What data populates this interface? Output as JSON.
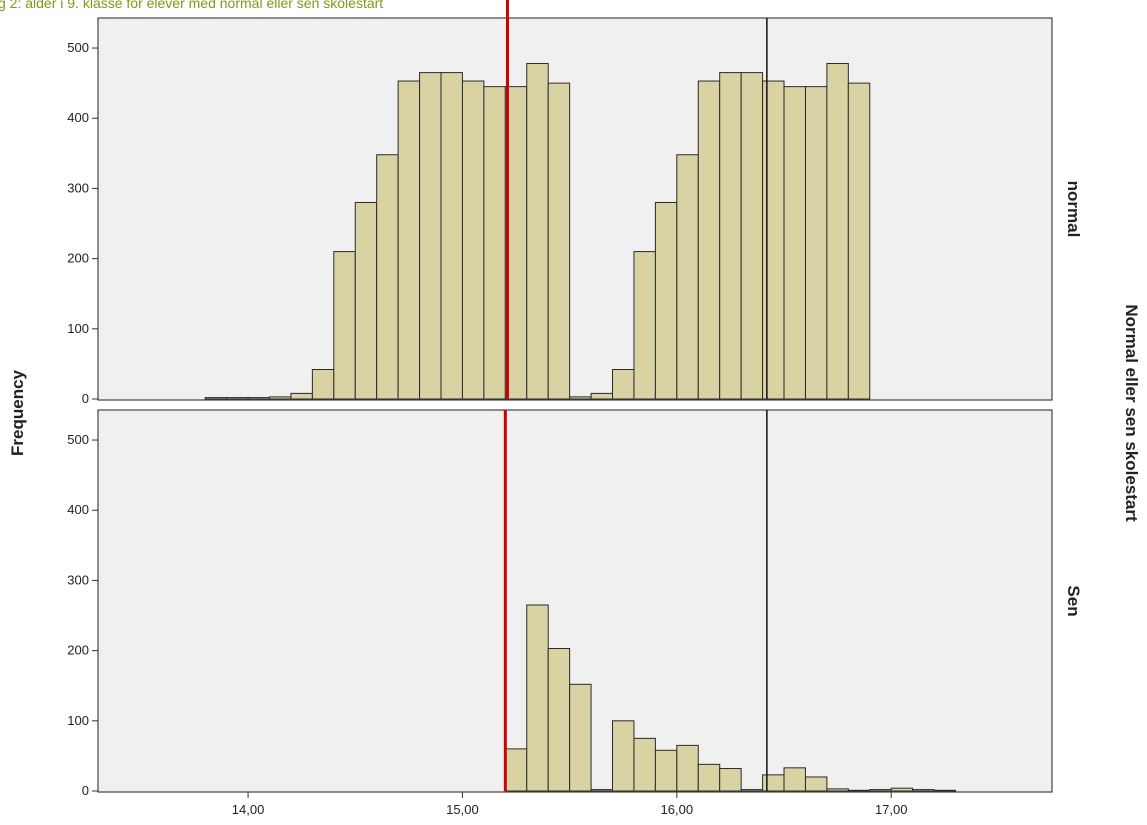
{
  "caption": "g 2: alder i 9. klasse for elever med normal eller sen skolestart",
  "colors": {
    "bar_fill": "#d9d3a4",
    "bar_stroke": "#2a2a2a",
    "panel_bg": "#f0f0f0",
    "panel_stroke": "#444444",
    "red_line": "#cc0000",
    "black_line": "#111111"
  },
  "chart_data": {
    "type": "bar",
    "xlim": [
      13.3,
      17.75
    ],
    "ylim": [
      0,
      520
    ],
    "bin_width": 0.1,
    "ylabel": "Frequency",
    "group_label": "Normal eller sen skolestart",
    "x_ticks": [
      {
        "value": 14.0,
        "label": "14,00"
      },
      {
        "value": 15.0,
        "label": "15,00"
      },
      {
        "value": 16.0,
        "label": "16,00"
      },
      {
        "value": 17.0,
        "label": "17,00"
      }
    ],
    "y_ticks": [
      0,
      100,
      200,
      300,
      400,
      500
    ],
    "panels": [
      {
        "label": "normal",
        "bins": [
          [
            13.85,
            2
          ],
          [
            13.95,
            2
          ],
          [
            14.05,
            2
          ],
          [
            14.15,
            3
          ],
          [
            14.25,
            8
          ],
          [
            14.35,
            42
          ],
          [
            14.45,
            210
          ],
          [
            14.55,
            280
          ],
          [
            14.65,
            348
          ],
          [
            14.75,
            453
          ],
          [
            14.85,
            465
          ],
          [
            14.95,
            465
          ],
          [
            15.05,
            453
          ],
          [
            15.15,
            445
          ],
          [
            15.25,
            445
          ],
          [
            15.35,
            478
          ],
          [
            15.45,
            450
          ],
          [
            15.55,
            3
          ],
          [
            15.65,
            8
          ],
          [
            15.75,
            42
          ],
          [
            15.85,
            210
          ],
          [
            15.95,
            280
          ],
          [
            16.05,
            348
          ],
          [
            16.15,
            453
          ],
          [
            16.25,
            465
          ],
          [
            16.35,
            465
          ],
          [
            16.45,
            453
          ],
          [
            16.55,
            445
          ],
          [
            16.65,
            445
          ],
          [
            16.75,
            478
          ],
          [
            16.85,
            450
          ]
        ],
        "red_line_x": 15.21,
        "black_line_x": 16.42
      },
      {
        "label": "Sen",
        "bins": [
          [
            15.25,
            60
          ],
          [
            15.35,
            265
          ],
          [
            15.45,
            203
          ],
          [
            15.55,
            152
          ],
          [
            15.65,
            2
          ],
          [
            15.75,
            100
          ],
          [
            15.85,
            75
          ],
          [
            15.95,
            58
          ],
          [
            16.05,
            65
          ],
          [
            16.15,
            38
          ],
          [
            16.25,
            32
          ],
          [
            16.35,
            2
          ],
          [
            16.45,
            23
          ],
          [
            16.55,
            33
          ],
          [
            16.65,
            20
          ],
          [
            16.75,
            3
          ],
          [
            16.85,
            1
          ],
          [
            16.95,
            2
          ],
          [
            17.05,
            4
          ],
          [
            17.15,
            2
          ],
          [
            17.25,
            1
          ]
        ],
        "red_line_x": 15.2,
        "black_line_x": 16.42
      }
    ]
  }
}
